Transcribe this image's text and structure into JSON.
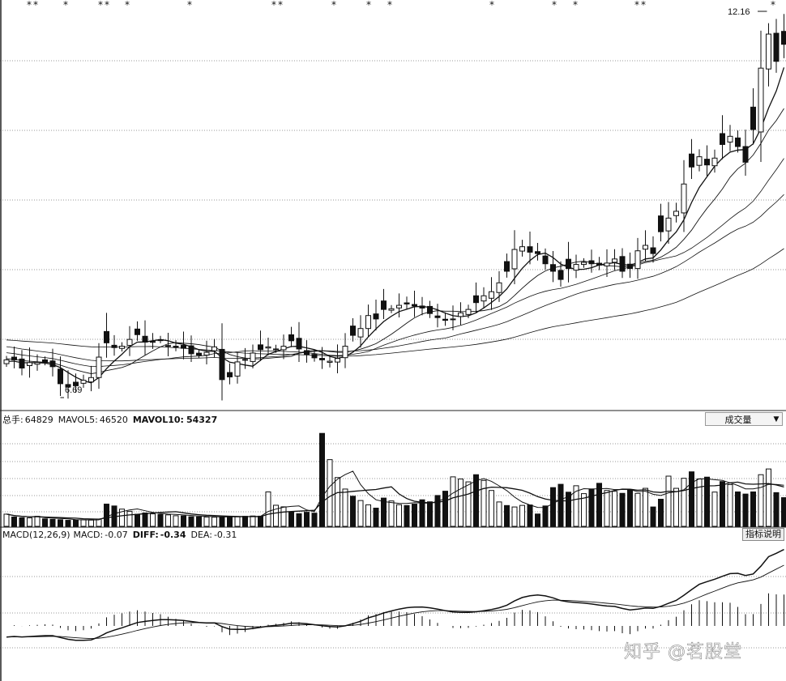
{
  "header_volume": {
    "total_label": "总手:",
    "total_value": "64829",
    "mavol5_label": "MAVOL5:",
    "mavol5_value": "46520",
    "mavol10_label": "MAVOL10:",
    "mavol10_value": "54327"
  },
  "volume_selector": {
    "value": "成交量",
    "arrow": "▼"
  },
  "header_macd": {
    "name": "MACD(12,26,9)",
    "macd_label": "MACD:",
    "macd_value": "-0.07",
    "diff_label": "DIFF:",
    "diff_value": "-0.34",
    "dea_label": "DEA:",
    "dea_value": "-0.31"
  },
  "help_button": {
    "label": "指标说明"
  },
  "watermark": "知乎 @茗股堂",
  "annotations": {
    "low": "6.69",
    "high": "12.16"
  },
  "colors": {
    "line": "#111111",
    "grid": "#9a9a9a",
    "background": "#ffffff"
  },
  "chart_data": [
    {
      "type": "candlestick",
      "name": "price",
      "low_label": "6.69",
      "high_label": "12.16",
      "close": [
        7.22,
        7.22,
        7.1,
        7.18,
        7.18,
        7.18,
        7.12,
        6.87,
        6.82,
        6.84,
        6.92,
        6.96,
        7.26,
        7.47,
        7.4,
        7.42,
        7.52,
        7.59,
        7.48,
        7.49,
        7.51,
        7.43,
        7.42,
        7.39,
        7.31,
        7.29,
        7.33,
        7.41,
        6.93,
        6.97,
        7.19,
        7.22,
        7.32,
        7.37,
        7.41,
        7.38,
        7.42,
        7.5,
        7.38,
        7.3,
        7.25,
        7.22,
        7.2,
        7.24,
        7.42,
        7.58,
        7.68,
        7.87,
        7.82,
        7.96,
        7.97,
        8.02,
        8.04,
        8.01,
        7.98,
        7.9,
        7.84,
        7.8,
        7.82,
        7.91,
        7.96,
        8.06,
        8.16,
        8.22,
        8.35,
        8.52,
        8.84,
        8.88,
        8.8,
        8.78,
        8.63,
        8.52,
        8.4,
        8.56,
        8.62,
        8.65,
        8.63,
        8.61,
        8.64,
        8.7,
        8.52,
        8.56,
        8.82,
        8.9,
        8.78,
        9.1,
        9.3,
        9.4,
        9.8,
        10.05,
        10.2,
        10.08,
        10.18,
        10.38,
        10.5,
        10.35,
        10.12,
        10.6,
        11.5,
        12.0,
        11.6,
        11.85
      ],
      "ylim": [
        6.5,
        12.5
      ],
      "xlim": [
        0,
        101
      ],
      "moving_averages": 4
    },
    {
      "type": "bar",
      "name": "volume",
      "values": [
        8500,
        6500,
        6000,
        5900,
        7000,
        5200,
        4900,
        4600,
        4200,
        4400,
        4600,
        4400,
        5100,
        15500,
        14200,
        12000,
        10500,
        8400,
        9300,
        8700,
        8300,
        8000,
        7400,
        7300,
        6700,
        6600,
        6500,
        6400,
        6600,
        6800,
        6700,
        7000,
        7200,
        7100,
        24000,
        14700,
        13600,
        10100,
        8800,
        9800,
        9200,
        64800,
        46500,
        34000,
        26000,
        21000,
        18000,
        15000,
        12700,
        19700,
        17700,
        15100,
        14500,
        15500,
        18500,
        17100,
        21500,
        24500,
        34500,
        33000,
        31000,
        36000,
        32000,
        25000,
        17000,
        14500,
        13500,
        14600,
        14900,
        8600,
        14200,
        27000,
        29300,
        23800,
        28300,
        22800,
        26000,
        30000,
        25000,
        24400,
        23000,
        25700,
        23000,
        26500,
        13500,
        18900,
        35000,
        26500,
        33500,
        38000,
        33000,
        34300,
        23900,
        31200,
        29100,
        24000,
        22500,
        24000,
        36000,
        40000,
        23500,
        20000
      ],
      "mavol5_label": "MAVOL5",
      "mavol10_label": "MAVOL10",
      "ylim": [
        0,
        70000
      ]
    },
    {
      "type": "line",
      "name": "macd",
      "series_labels": [
        "DIFF",
        "DEA",
        "MACD"
      ],
      "ylim": [
        -0.55,
        0.85
      ]
    }
  ]
}
